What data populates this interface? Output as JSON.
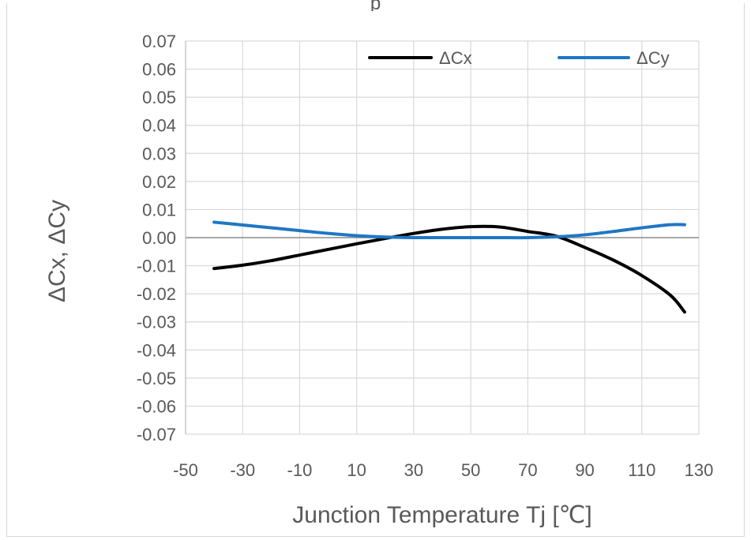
{
  "chart_data": {
    "type": "line",
    "title": "",
    "xlabel": "Junction Temperature  Tj  [℃]",
    "ylabel": "ΔCx,  ΔCy",
    "xlim": [
      -50,
      130
    ],
    "ylim": [
      -0.07,
      0.07
    ],
    "x_ticks": [
      "-50",
      "-30",
      "-10",
      "10",
      "30",
      "50",
      "70",
      "90",
      "110",
      "130"
    ],
    "y_ticks": [
      "0.07",
      "0.06",
      "0.05",
      "0.04",
      "0.03",
      "0.02",
      "0.01",
      "0.00",
      "-0.01",
      "-0.02",
      "-0.03",
      "-0.04",
      "-0.05",
      "-0.06",
      "-0.07"
    ],
    "grid": true,
    "legend_position": "top-right",
    "series": [
      {
        "name": "ΔCx",
        "color": "#000000",
        "points": [
          [
            -40,
            -0.011
          ],
          [
            -30,
            -0.0098
          ],
          [
            -20,
            -0.0082
          ],
          [
            -10,
            -0.0062
          ],
          [
            0,
            -0.0042
          ],
          [
            10,
            -0.0022
          ],
          [
            20,
            -0.0003
          ],
          [
            30,
            0.0015
          ],
          [
            40,
            0.003
          ],
          [
            50,
            0.0039
          ],
          [
            60,
            0.0038
          ],
          [
            70,
            0.0022
          ],
          [
            80,
            0.0005
          ],
          [
            90,
            -0.0035
          ],
          [
            100,
            -0.008
          ],
          [
            110,
            -0.0135
          ],
          [
            120,
            -0.0205
          ],
          [
            125,
            -0.0265
          ]
        ]
      },
      {
        "name": "ΔCy",
        "color": "#1f77c4",
        "points": [
          [
            -40,
            0.0055
          ],
          [
            -30,
            0.0045
          ],
          [
            -20,
            0.0035
          ],
          [
            -10,
            0.0025
          ],
          [
            0,
            0.0015
          ],
          [
            10,
            0.0007
          ],
          [
            20,
            0.0002
          ],
          [
            30,
            0.0
          ],
          [
            40,
            0.0
          ],
          [
            50,
            0.0
          ],
          [
            60,
            0.0
          ],
          [
            70,
            0.0
          ],
          [
            80,
            0.0003
          ],
          [
            90,
            0.001
          ],
          [
            100,
            0.0022
          ],
          [
            110,
            0.0035
          ],
          [
            120,
            0.0046
          ],
          [
            125,
            0.0046
          ]
        ]
      }
    ]
  },
  "title_fragment": "p"
}
